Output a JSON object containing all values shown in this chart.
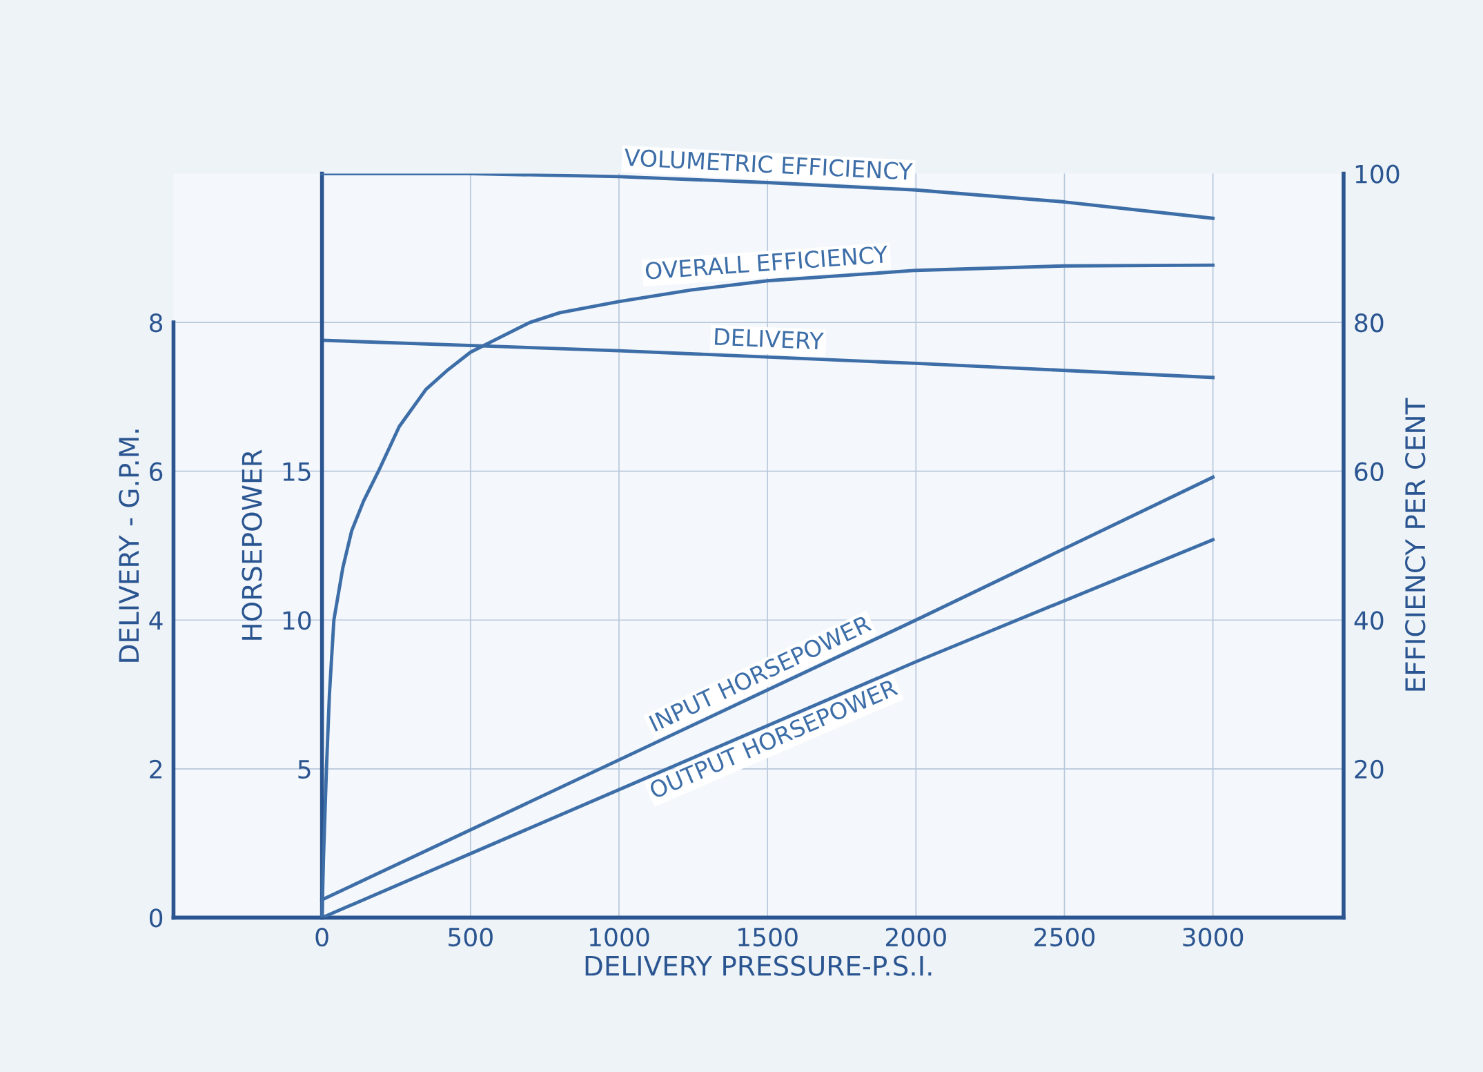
{
  "chart_data": {
    "type": "line",
    "xlabel": "DELIVERY PRESSURE-P.S.I.",
    "ylabel": "DELIVERY - G.P.M.",
    "y2label": "HORSEPOWER",
    "y3label": "EFFICIENCY PER CENT",
    "xlim": [
      -500,
      3440
    ],
    "xticks": [
      0,
      500,
      1000,
      1500,
      2000,
      2500,
      3000
    ],
    "ylim": [
      0,
      10
    ],
    "yticks": [
      0,
      2,
      4,
      6,
      8
    ],
    "y2lim": [
      0,
      25
    ],
    "y2ticks": [
      5,
      10,
      15
    ],
    "y3lim": [
      0,
      100
    ],
    "y3ticks": [
      20,
      40,
      60,
      80,
      100
    ],
    "grid": true,
    "marker": "none",
    "line_style": "solid",
    "series": [
      {
        "name": "VOLUMETRIC EFFICIENCY",
        "axis": "y3",
        "color": "#3d6ea8",
        "x": [
          0,
          500,
          1000,
          1500,
          2000,
          2500,
          3000
        ],
        "values": [
          100,
          100,
          99.6,
          98.8,
          97.8,
          96.2,
          94
        ]
      },
      {
        "name": "OVERALL EFFICIENCY",
        "axis": "y3",
        "color": "#3d6ea8",
        "x": [
          0,
          5,
          15,
          25,
          40,
          70,
          100,
          140,
          190,
          260,
          350,
          420,
          500,
          600,
          700,
          800,
          1000,
          1250,
          1500,
          2000,
          2500,
          3000
        ],
        "values": [
          0,
          8,
          20,
          30,
          40,
          47,
          52,
          56,
          60,
          66,
          71,
          73.5,
          76,
          78,
          80,
          81.3,
          82.8,
          84.4,
          85.6,
          87,
          87.6,
          87.7
        ]
      },
      {
        "name": "DELIVERY",
        "axis": "y",
        "color": "#3d6ea8",
        "x": [
          0,
          1000,
          2000,
          3000
        ],
        "values": [
          7.76,
          7.62,
          7.45,
          7.26
        ]
      },
      {
        "name": "INPUT HORSEPOWER",
        "axis": "y2",
        "color": "#3d6ea8",
        "x": [
          0,
          1000,
          2000,
          3000
        ],
        "values": [
          0.6,
          5.3,
          10.0,
          14.8
        ]
      },
      {
        "name": "OUTPUT HORSEPOWER",
        "axis": "y2",
        "color": "#3d6ea8",
        "x": [
          0,
          1000,
          2000,
          3000
        ],
        "values": [
          0,
          4.3,
          8.6,
          12.7
        ]
      }
    ]
  }
}
